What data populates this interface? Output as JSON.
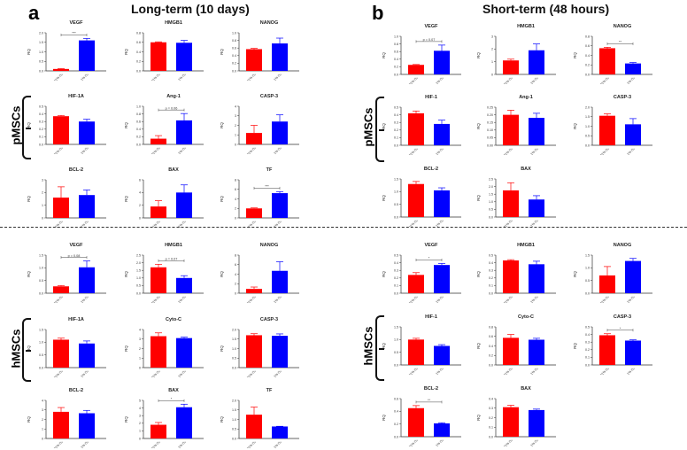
{
  "panels": [
    {
      "label": "a",
      "title": "Long-term (10 days)",
      "x_labels": [
        "21% O₂",
        "1% O₂"
      ]
    },
    {
      "label": "b",
      "title": "Short-term (48 hours)",
      "x_labels": [
        "21% O₂",
        "1% O₂"
      ]
    }
  ],
  "groups": [
    "pMSCs",
    "hMSCs",
    "pMSCs",
    "hMSCs"
  ],
  "colors": {
    "normoxia": "#ff0000",
    "hypoxia": "#0000ff"
  },
  "chart_data": [
    {
      "panel": "a",
      "group": "pMSCs",
      "type": "bar",
      "title": "VEGF",
      "ylabel": "RQ",
      "ylim": [
        0,
        2.0
      ],
      "ticks": [
        "0.0",
        "0.5",
        "1.0",
        "1.5",
        "2.0"
      ],
      "values": [
        0.1,
        1.6
      ],
      "errors": [
        0.02,
        0.1
      ],
      "sig": "***"
    },
    {
      "panel": "a",
      "group": "pMSCs",
      "type": "bar",
      "title": "HMGB1",
      "ylabel": "RQ",
      "ylim": [
        0,
        0.8
      ],
      "ticks": [
        "0.0",
        "0.2",
        "0.4",
        "0.6",
        "0.8"
      ],
      "values": [
        0.6,
        0.59
      ],
      "errors": [
        0.01,
        0.05
      ],
      "sig": ""
    },
    {
      "panel": "a",
      "group": "pMSCs",
      "type": "bar",
      "title": "NANOG",
      "ylabel": "RQ",
      "ylim": [
        0,
        1.0
      ],
      "ticks": [
        "0.0",
        "0.2",
        "0.4",
        "0.6",
        "0.8",
        "1.0"
      ],
      "values": [
        0.57,
        0.72
      ],
      "errors": [
        0.02,
        0.14
      ],
      "sig": ""
    },
    {
      "panel": "a",
      "group": "pMSCs",
      "type": "bar",
      "title": "HIF-1A",
      "ylabel": "RQ",
      "ylim": [
        0,
        0.5
      ],
      "ticks": [
        "0.0",
        "0.1",
        "0.2",
        "0.3",
        "0.4",
        "0.5"
      ],
      "values": [
        0.37,
        0.3
      ],
      "errors": [
        0.01,
        0.03
      ],
      "sig": ""
    },
    {
      "panel": "a",
      "group": "pMSCs",
      "type": "bar",
      "title": "Ang-1",
      "ylabel": "RQ",
      "ylim": [
        0,
        1.0
      ],
      "ticks": [
        "0.0",
        "0.2",
        "0.4",
        "0.6",
        "0.8",
        "1.0"
      ],
      "values": [
        0.15,
        0.63
      ],
      "errors": [
        0.08,
        0.18
      ],
      "sig": "p = 0.06"
    },
    {
      "panel": "a",
      "group": "pMSCs",
      "type": "bar",
      "title": "CASP-3",
      "ylabel": "RQ",
      "ylim": [
        0,
        4
      ],
      "ticks": [
        "0",
        "1",
        "2",
        "3",
        "4"
      ],
      "values": [
        1.2,
        2.4
      ],
      "errors": [
        0.8,
        0.7
      ],
      "sig": ""
    },
    {
      "panel": "a",
      "group": "pMSCs",
      "type": "bar",
      "title": "BCL-2",
      "ylabel": "RQ",
      "ylim": [
        0,
        3
      ],
      "ticks": [
        "0",
        "1",
        "2",
        "3"
      ],
      "values": [
        1.6,
        1.8
      ],
      "errors": [
        0.85,
        0.4
      ],
      "sig": ""
    },
    {
      "panel": "a",
      "group": "pMSCs",
      "type": "bar",
      "title": "BAX",
      "ylabel": "RQ",
      "ylim": [
        0,
        6
      ],
      "ticks": [
        "0",
        "2",
        "4",
        "6"
      ],
      "values": [
        1.8,
        4.0
      ],
      "errors": [
        0.9,
        1.2
      ],
      "sig": ""
    },
    {
      "panel": "a",
      "group": "pMSCs",
      "type": "bar",
      "title": "TF",
      "ylabel": "RQ",
      "ylim": [
        0,
        8
      ],
      "ticks": [
        "0",
        "2",
        "4",
        "6",
        "8"
      ],
      "values": [
        2.0,
        5.2
      ],
      "errors": [
        0.1,
        0.3
      ],
      "sig": "***"
    },
    {
      "panel": "a",
      "group": "hMSCs",
      "type": "bar",
      "title": "VEGF",
      "ylabel": "RQ",
      "ylim": [
        0,
        1.5
      ],
      "ticks": [
        "0.0",
        "0.5",
        "1.0",
        "1.5"
      ],
      "values": [
        0.27,
        1.02
      ],
      "errors": [
        0.03,
        0.25
      ],
      "sig": "p = 0.08"
    },
    {
      "panel": "a",
      "group": "hMSCs",
      "type": "bar",
      "title": "HMGB1",
      "ylabel": "RQ",
      "ylim": [
        0,
        2.5
      ],
      "ticks": [
        "0.0",
        "0.5",
        "1.0",
        "1.5",
        "2.0",
        "2.5"
      ],
      "values": [
        1.7,
        1.0
      ],
      "errors": [
        0.2,
        0.15
      ],
      "sig": "p = 0.07"
    },
    {
      "panel": "a",
      "group": "hMSCs",
      "type": "bar",
      "title": "NANOG",
      "ylabel": "RQ",
      "ylim": [
        0,
        8
      ],
      "ticks": [
        "0",
        "2",
        "4",
        "6",
        "8"
      ],
      "values": [
        0.9,
        4.7
      ],
      "errors": [
        0.4,
        1.9
      ],
      "sig": ""
    },
    {
      "panel": "a",
      "group": "hMSCs",
      "type": "bar",
      "title": "HIF-1A",
      "ylabel": "RQ",
      "ylim": [
        0,
        1.5
      ],
      "ticks": [
        "0.0",
        "0.5",
        "1.0",
        "1.5"
      ],
      "values": [
        1.1,
        0.95
      ],
      "errors": [
        0.06,
        0.1
      ],
      "sig": ""
    },
    {
      "panel": "a",
      "group": "hMSCs",
      "type": "bar",
      "title": "Cyto-C",
      "ylabel": "RQ",
      "ylim": [
        0,
        4
      ],
      "ticks": [
        "0",
        "1",
        "2",
        "3",
        "4"
      ],
      "values": [
        3.3,
        3.1
      ],
      "errors": [
        0.35,
        0.1
      ],
      "sig": ""
    },
    {
      "panel": "a",
      "group": "hMSCs",
      "type": "bar",
      "title": "CASP-3",
      "ylabel": "RQ",
      "ylim": [
        0,
        2.0
      ],
      "ticks": [
        "0.0",
        "0.5",
        "1.0",
        "1.5",
        "2.0"
      ],
      "values": [
        1.7,
        1.67
      ],
      "errors": [
        0.08,
        0.1
      ],
      "sig": ""
    },
    {
      "panel": "a",
      "group": "hMSCs",
      "type": "bar",
      "title": "BCL-2",
      "ylabel": "RQ",
      "ylim": [
        0,
        4
      ],
      "ticks": [
        "0",
        "1",
        "2",
        "3",
        "4"
      ],
      "values": [
        2.8,
        2.65
      ],
      "errors": [
        0.45,
        0.3
      ],
      "sig": ""
    },
    {
      "panel": "a",
      "group": "hMSCs",
      "type": "bar",
      "title": "BAX",
      "ylabel": "RQ",
      "ylim": [
        0,
        5
      ],
      "ticks": [
        "0",
        "1",
        "2",
        "3",
        "4",
        "5"
      ],
      "values": [
        1.8,
        4.1
      ],
      "errors": [
        0.3,
        0.4
      ],
      "sig": "*"
    },
    {
      "panel": "a",
      "group": "hMSCs",
      "type": "bar",
      "title": "TF",
      "ylabel": "RQ",
      "ylim": [
        0,
        2.0
      ],
      "ticks": [
        "0.0",
        "0.5",
        "1.0",
        "1.5",
        "2.0"
      ],
      "values": [
        1.25,
        0.63
      ],
      "errors": [
        0.4,
        0.01
      ],
      "sig": ""
    },
    {
      "panel": "b",
      "group": "pMSCs",
      "type": "bar",
      "title": "VEGF",
      "ylabel": "RQ",
      "ylim": [
        0,
        1.0
      ],
      "ticks": [
        "0.0",
        "0.2",
        "0.4",
        "0.6",
        "0.8",
        "1.0"
      ],
      "values": [
        0.25,
        0.62
      ],
      "errors": [
        0.01,
        0.15
      ],
      "sig": "p = 0.07"
    },
    {
      "panel": "b",
      "group": "pMSCs",
      "type": "bar",
      "title": "HMGB1",
      "ylabel": "RQ",
      "ylim": [
        0,
        3
      ],
      "ticks": [
        "0",
        "1",
        "2",
        "3"
      ],
      "values": [
        1.1,
        1.9
      ],
      "errors": [
        0.1,
        0.5
      ],
      "sig": ""
    },
    {
      "panel": "b",
      "group": "pMSCs",
      "type": "bar",
      "title": "NANOG",
      "ylabel": "RQ",
      "ylim": [
        0,
        0.8
      ],
      "ticks": [
        "0.0",
        "0.2",
        "0.4",
        "0.6",
        "0.8"
      ],
      "values": [
        0.55,
        0.23
      ],
      "errors": [
        0.02,
        0.02
      ],
      "sig": "**"
    },
    {
      "panel": "b",
      "group": "pMSCs",
      "type": "bar",
      "title": "HIF-1",
      "ylabel": "RQ",
      "ylim": [
        0,
        0.5
      ],
      "ticks": [
        "0.0",
        "0.1",
        "0.2",
        "0.3",
        "0.4",
        "0.5"
      ],
      "values": [
        0.42,
        0.28
      ],
      "errors": [
        0.03,
        0.05
      ],
      "sig": ""
    },
    {
      "panel": "b",
      "group": "pMSCs",
      "type": "bar",
      "title": "Ang-1",
      "ylabel": "RQ",
      "ylim": [
        0,
        0.25
      ],
      "ticks": [
        "0.00",
        "0.05",
        "0.10",
        "0.15",
        "0.20",
        "0.25"
      ],
      "values": [
        0.2,
        0.18
      ],
      "errors": [
        0.03,
        0.03
      ],
      "sig": ""
    },
    {
      "panel": "b",
      "group": "pMSCs",
      "type": "bar",
      "title": "CASP-3",
      "ylabel": "RQ",
      "ylim": [
        0,
        2.0
      ],
      "ticks": [
        "0.0",
        "0.5",
        "1.0",
        "1.5",
        "2.0"
      ],
      "values": [
        1.55,
        1.1
      ],
      "errors": [
        0.1,
        0.3
      ],
      "sig": ""
    },
    {
      "panel": "b",
      "group": "pMSCs",
      "type": "bar",
      "title": "BCL-2",
      "ylabel": "RQ",
      "ylim": [
        0,
        1.5
      ],
      "ticks": [
        "0.0",
        "0.5",
        "1.0",
        "1.5"
      ],
      "values": [
        1.3,
        1.05
      ],
      "errors": [
        0.1,
        0.1
      ],
      "sig": ""
    },
    {
      "panel": "b",
      "group": "pMSCs",
      "type": "bar",
      "title": "BAX",
      "ylabel": "RQ",
      "ylim": [
        0,
        2.5
      ],
      "ticks": [
        "0.0",
        "0.5",
        "1.0",
        "1.5",
        "2.0",
        "2.5"
      ],
      "values": [
        1.75,
        1.15
      ],
      "errors": [
        0.5,
        0.25
      ],
      "sig": ""
    },
    {
      "panel": "b",
      "group": "hMSCs",
      "type": "bar",
      "title": "VEGF",
      "ylabel": "RQ",
      "ylim": [
        0,
        0.5
      ],
      "ticks": [
        "0.0",
        "0.1",
        "0.2",
        "0.3",
        "0.4",
        "0.5"
      ],
      "values": [
        0.24,
        0.37
      ],
      "errors": [
        0.03,
        0.02
      ],
      "sig": "*"
    },
    {
      "panel": "b",
      "group": "hMSCs",
      "type": "bar",
      "title": "HMGB1",
      "ylabel": "RQ",
      "ylim": [
        0,
        0.5
      ],
      "ticks": [
        "0.0",
        "0.1",
        "0.2",
        "0.3",
        "0.4",
        "0.5"
      ],
      "values": [
        0.43,
        0.38
      ],
      "errors": [
        0.01,
        0.04
      ],
      "sig": ""
    },
    {
      "panel": "b",
      "group": "hMSCs",
      "type": "bar",
      "title": "NANOG",
      "ylabel": "RQ",
      "ylim": [
        0,
        1.5
      ],
      "ticks": [
        "0.0",
        "0.5",
        "1.0",
        "1.5"
      ],
      "values": [
        0.7,
        1.27
      ],
      "errors": [
        0.35,
        0.1
      ],
      "sig": ""
    },
    {
      "panel": "b",
      "group": "hMSCs",
      "type": "bar",
      "title": "HIF-1",
      "ylabel": "RQ",
      "ylim": [
        0,
        1.5
      ],
      "ticks": [
        "0.0",
        "0.5",
        "1.0",
        "1.5"
      ],
      "values": [
        1.0,
        0.75
      ],
      "errors": [
        0.05,
        0.05
      ],
      "sig": ""
    },
    {
      "panel": "b",
      "group": "hMSCs",
      "type": "bar",
      "title": "Cyto-C",
      "ylabel": "RQ",
      "ylim": [
        0,
        0.8
      ],
      "ticks": [
        "0.0",
        "0.2",
        "0.4",
        "0.6",
        "0.8"
      ],
      "values": [
        0.57,
        0.53
      ],
      "errors": [
        0.07,
        0.03
      ],
      "sig": ""
    },
    {
      "panel": "b",
      "group": "hMSCs",
      "type": "bar",
      "title": "CASP-3",
      "ylabel": "RQ",
      "ylim": [
        0,
        0.5
      ],
      "ticks": [
        "0.0",
        "0.1",
        "0.2",
        "0.3",
        "0.4",
        "0.5"
      ],
      "values": [
        0.39,
        0.32
      ],
      "errors": [
        0.02,
        0.01
      ],
      "sig": "*"
    },
    {
      "panel": "b",
      "group": "hMSCs",
      "type": "bar",
      "title": "BCL-2",
      "ylabel": "RQ",
      "ylim": [
        0,
        0.6
      ],
      "ticks": [
        "0.0",
        "0.2",
        "0.4",
        "0.6"
      ],
      "values": [
        0.45,
        0.21
      ],
      "errors": [
        0.04,
        0.01
      ],
      "sig": "**"
    },
    {
      "panel": "b",
      "group": "hMSCs",
      "type": "bar",
      "title": "BAX",
      "ylabel": "RQ",
      "ylim": [
        0,
        0.4
      ],
      "ticks": [
        "0.0",
        "0.1",
        "0.2",
        "0.3",
        "0.4"
      ],
      "values": [
        0.31,
        0.28
      ],
      "errors": [
        0.02,
        0.01
      ],
      "sig": ""
    }
  ]
}
